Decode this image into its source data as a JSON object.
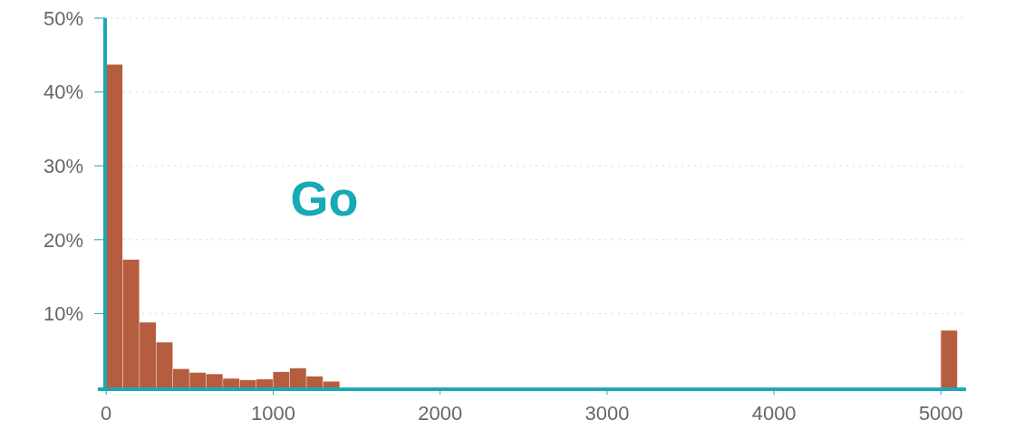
{
  "chart_data": {
    "type": "histogram",
    "title": "Go",
    "color": "#b55d3e",
    "bins": [
      0,
      100,
      200,
      300,
      400,
      500,
      600,
      700,
      800,
      900,
      1000,
      1100,
      1200,
      1300,
      1400,
      1500,
      1600,
      1700,
      1800,
      1900,
      2000,
      2100,
      2200,
      2300,
      2400,
      2500,
      2600,
      2700,
      2800,
      2900,
      3000,
      3100,
      3200,
      3300,
      3400,
      3500,
      3600,
      3700,
      3800,
      3900,
      4000,
      4100,
      4200,
      4300,
      4400,
      4500,
      4600,
      4700,
      4800,
      4900,
      5000,
      5100
    ],
    "values": [
      43.7,
      17.3,
      8.8,
      6.1,
      2.5,
      2.0,
      1.8,
      1.2,
      1.0,
      1.1,
      2.1,
      2.6,
      1.5,
      0.8,
      0,
      0,
      0,
      0,
      0,
      0,
      0,
      0,
      0,
      0,
      0,
      0,
      0,
      0,
      0,
      0,
      0,
      0,
      0,
      0,
      0,
      0,
      0,
      0,
      0,
      0,
      0,
      0,
      0,
      0,
      0,
      0,
      0,
      0,
      0,
      0,
      7.7
    ],
    "xlim": [
      -50,
      5150
    ],
    "xticks": [
      0,
      1000,
      2000,
      3000,
      4000,
      5000
    ],
    "ylim": [
      0,
      50
    ],
    "yticks": [
      {
        "value": 10,
        "label": "10%"
      },
      {
        "value": 20,
        "label": "20%"
      },
      {
        "value": 30,
        "label": "30%"
      },
      {
        "value": 40,
        "label": "40%"
      },
      {
        "value": 50,
        "label": "50%"
      }
    ],
    "grid": "y"
  }
}
